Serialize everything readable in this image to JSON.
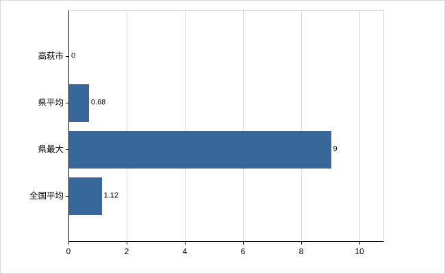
{
  "chart_data": {
    "type": "bar",
    "orientation": "horizontal",
    "title": "",
    "xlabel": "",
    "ylabel": "",
    "categories": [
      "高萩市",
      "県平均",
      "県最大",
      "全国平均"
    ],
    "values": [
      0,
      0.68,
      9,
      1.12
    ],
    "value_labels": [
      "0",
      "0.68",
      "9",
      "1.12"
    ],
    "x_ticks": [
      0,
      2,
      4,
      6,
      8,
      10
    ],
    "x_tick_labels": [
      "0",
      "2",
      "4",
      "6",
      "8",
      "10"
    ],
    "xlim": [
      0,
      10.85
    ],
    "grid": true,
    "legend": false,
    "colors": {
      "bar": "#38679c",
      "grid": "#d9d9d9",
      "axis": "#000000",
      "background": "#ffffff"
    }
  }
}
